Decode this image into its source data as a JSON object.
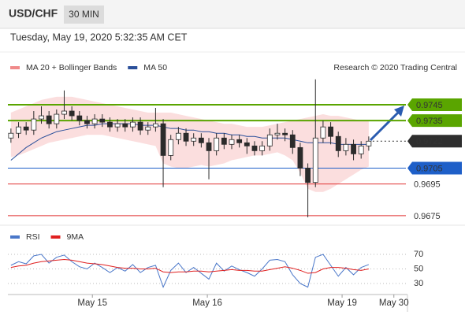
{
  "header": {
    "symbol": "USD/CHF",
    "interval": "30 MIN",
    "timestamp": "Tuesday, May 19, 2020 5:32:35 AM CET"
  },
  "chart_data": [
    {
      "type": "candlestick",
      "credit": "Research © 2020 Trading Central",
      "x": [
        0,
        1,
        2,
        3,
        4,
        5,
        6,
        7,
        8,
        9,
        10,
        11,
        12,
        13,
        14,
        15,
        16,
        17,
        18,
        19,
        20,
        21,
        22,
        23,
        24,
        25,
        26,
        27,
        28,
        29,
        30,
        31,
        32,
        33,
        34,
        35,
        36,
        37,
        38,
        39,
        40,
        41,
        42,
        43,
        44,
        45,
        46,
        47
      ],
      "open": [
        0.9724,
        0.9727,
        0.9731,
        0.9729,
        0.9736,
        0.9738,
        0.9733,
        0.9739,
        0.9741,
        0.9738,
        0.9735,
        0.9733,
        0.9736,
        0.9734,
        0.9731,
        0.9733,
        0.9731,
        0.9734,
        0.9729,
        0.9731,
        0.9733,
        0.9713,
        0.9723,
        0.9727,
        0.9722,
        0.9724,
        0.9721,
        0.9716,
        0.9724,
        0.972,
        0.9723,
        0.9721,
        0.9719,
        0.9716,
        0.9719,
        0.9726,
        0.9727,
        0.9726,
        0.9718,
        0.9705,
        0.9696,
        0.9724,
        0.9731,
        0.9725,
        0.9716,
        0.972,
        0.9714,
        0.9719
      ],
      "high": [
        0.973,
        0.9734,
        0.9734,
        0.9741,
        0.9744,
        0.9741,
        0.9742,
        0.9754,
        0.9744,
        0.9741,
        0.9738,
        0.9739,
        0.9739,
        0.9737,
        0.9736,
        0.9736,
        0.9737,
        0.9737,
        0.9734,
        0.9743,
        0.9736,
        0.9726,
        0.9731,
        0.973,
        0.9727,
        0.9727,
        0.9724,
        0.9727,
        0.9727,
        0.9726,
        0.9726,
        0.9724,
        0.9722,
        0.9722,
        0.973,
        0.9733,
        0.973,
        0.9729,
        0.9721,
        0.9708,
        0.9761,
        0.9735,
        0.9734,
        0.9728,
        0.9724,
        0.9723,
        0.9722,
        0.9725
      ],
      "low": [
        0.9721,
        0.9724,
        0.9726,
        0.9726,
        0.9733,
        0.973,
        0.973,
        0.9736,
        0.9735,
        0.9732,
        0.973,
        0.973,
        0.9731,
        0.9728,
        0.9728,
        0.9728,
        0.9728,
        0.9726,
        0.9726,
        0.9728,
        0.9693,
        0.971,
        0.972,
        0.9719,
        0.9719,
        0.9718,
        0.9698,
        0.9713,
        0.9717,
        0.9717,
        0.9718,
        0.9714,
        0.9713,
        0.9713,
        0.9716,
        0.9723,
        0.9722,
        0.9714,
        0.97,
        0.9674,
        0.9693,
        0.9721,
        0.972,
        0.9712,
        0.9713,
        0.971,
        0.9711,
        0.9716
      ],
      "close": [
        0.9727,
        0.9731,
        0.9729,
        0.9736,
        0.9738,
        0.9733,
        0.9739,
        0.9741,
        0.9738,
        0.9735,
        0.9733,
        0.9736,
        0.9734,
        0.9731,
        0.9733,
        0.9731,
        0.9734,
        0.9729,
        0.9731,
        0.9733,
        0.9713,
        0.9723,
        0.9727,
        0.9722,
        0.9724,
        0.9721,
        0.9716,
        0.9724,
        0.972,
        0.9723,
        0.9721,
        0.9719,
        0.9716,
        0.9719,
        0.9726,
        0.9727,
        0.9726,
        0.9718,
        0.9705,
        0.9696,
        0.9724,
        0.9731,
        0.9725,
        0.9716,
        0.972,
        0.9714,
        0.9719,
        0.9722
      ],
      "up_color": "#ffffff",
      "down_color": "#2b2b2b",
      "wick_color": "#2b2b2b",
      "series": [
        {
          "name": "MA 20 + Bollinger Bands",
          "color": "#f08a8a",
          "upper": [
            0.974,
            0.9742,
            0.9744,
            0.9746,
            0.9748,
            0.9749,
            0.975,
            0.975,
            0.975,
            0.9749,
            0.9748,
            0.9747,
            0.9746,
            0.9745,
            0.9744,
            0.9743,
            0.9742,
            0.9741,
            0.974,
            0.974,
            0.974,
            0.974,
            0.9739,
            0.9738,
            0.9737,
            0.9736,
            0.9735,
            0.9734,
            0.9733,
            0.9733,
            0.9732,
            0.9731,
            0.9731,
            0.9731,
            0.9732,
            0.9733,
            0.9734,
            0.9735,
            0.9736,
            0.9737,
            0.9738,
            0.9739,
            0.9738,
            0.9738,
            0.9737,
            0.9736,
            0.9735,
            0.9735
          ],
          "lower": [
            0.9712,
            0.9713,
            0.9715,
            0.9717,
            0.9719,
            0.9721,
            0.9722,
            0.9723,
            0.9724,
            0.9725,
            0.9726,
            0.9726,
            0.9726,
            0.9725,
            0.9724,
            0.9723,
            0.9722,
            0.9721,
            0.972,
            0.9719,
            0.9708,
            0.9706,
            0.9705,
            0.9705,
            0.9706,
            0.9707,
            0.9706,
            0.9707,
            0.9708,
            0.971,
            0.9711,
            0.9712,
            0.9713,
            0.9713,
            0.9714,
            0.9715,
            0.9713,
            0.971,
            0.9702,
            0.9692,
            0.969,
            0.969,
            0.9692,
            0.9695,
            0.9698,
            0.9701,
            0.9704,
            0.9706
          ]
        },
        {
          "name": "MA 50",
          "color": "#2a4f9a",
          "values": [
            0.971,
            0.9714,
            0.9718,
            0.9721,
            0.9724,
            0.9726,
            0.9728,
            0.9729,
            0.973,
            0.9731,
            0.9732,
            0.9732,
            0.9733,
            0.9733,
            0.9733,
            0.9733,
            0.9733,
            0.9732,
            0.9732,
            0.9732,
            0.9731,
            0.973,
            0.973,
            0.9729,
            0.9729,
            0.9728,
            0.9728,
            0.9727,
            0.9727,
            0.9726,
            0.9726,
            0.9725,
            0.9725,
            0.9724,
            0.9724,
            0.9724,
            0.9724,
            0.9723,
            0.9722,
            0.9721,
            0.9721,
            0.9721,
            0.9721,
            0.972,
            0.972,
            0.972,
            0.972,
            0.972
          ]
        }
      ],
      "levels": [
        {
          "value": 0.9745,
          "color": "#5aa500",
          "style": "solid",
          "label": "box"
        },
        {
          "value": 0.9735,
          "color": "#5aa500",
          "style": "solid",
          "label": "box"
        },
        {
          "value": 0.9722,
          "color": "#2e2e2e",
          "style": "dotted",
          "label": "box"
        },
        {
          "value": 0.9705,
          "color": "#1e5fc8",
          "style": "solid",
          "label": "box"
        },
        {
          "value": 0.9695,
          "color": "#e03030",
          "style": "solid",
          "label": "text"
        },
        {
          "value": 0.9675,
          "color": "#e03030",
          "style": "solid",
          "label": "text"
        }
      ],
      "xlim": [
        -0.4,
        52.5
      ],
      "xticks": [
        {
          "value": 10.7,
          "label": "May 15"
        },
        {
          "value": 25.8,
          "label": "May 16"
        },
        {
          "value": 43.5,
          "label": "May 19"
        },
        {
          "value": 50.3,
          "label": "May 30"
        }
      ],
      "ylim": [
        0.967,
        0.9765
      ]
    },
    {
      "type": "line",
      "series": [
        {
          "name": "RSI",
          "color": "#4a77c9",
          "values": [
            55,
            60,
            57,
            68,
            70,
            58,
            66,
            69,
            60,
            53,
            50,
            58,
            52,
            45,
            52,
            47,
            56,
            45,
            52,
            55,
            25,
            48,
            58,
            45,
            52,
            44,
            36,
            58,
            47,
            54,
            49,
            45,
            40,
            50,
            62,
            63,
            60,
            42,
            30,
            25,
            66,
            70,
            55,
            40,
            52,
            42,
            52,
            56
          ]
        },
        {
          "name": "9MA",
          "color": "#e02020",
          "values": [
            52,
            54,
            55,
            58,
            60,
            61,
            62,
            63,
            62,
            60,
            58,
            57,
            56,
            54,
            52,
            51,
            51,
            50,
            50,
            51,
            46,
            45,
            46,
            46,
            47,
            47,
            46,
            47,
            48,
            49,
            48,
            48,
            47,
            47,
            49,
            51,
            53,
            51,
            48,
            44,
            45,
            50,
            52,
            52,
            51,
            49,
            48,
            50
          ]
        }
      ],
      "ylim": [
        0,
        100
      ],
      "yticks": [
        30,
        50,
        70
      ]
    }
  ]
}
